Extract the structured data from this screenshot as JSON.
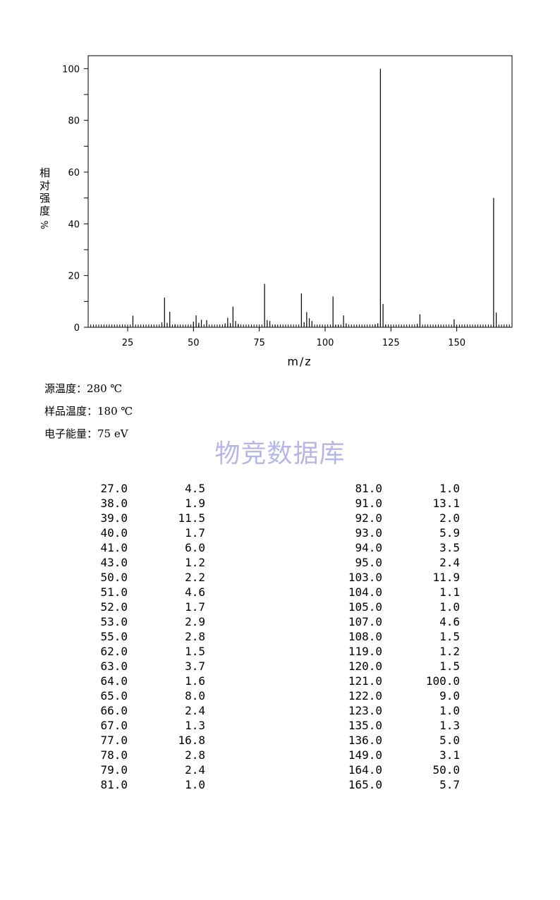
{
  "chart_data": {
    "type": "bar",
    "title": "",
    "xlabel": "m/z",
    "ylabel_chars": [
      "相",
      "对",
      "强",
      "度"
    ],
    "ylabel_unit": "%",
    "xlim": [
      10,
      171
    ],
    "ylim": [
      0,
      105
    ],
    "x_ticks": [
      25,
      50,
      75,
      100,
      125,
      150
    ],
    "y_ticks": [
      0,
      20,
      40,
      60,
      80,
      100
    ],
    "grid": false,
    "x": [
      27,
      38,
      39,
      40,
      41,
      43,
      50,
      51,
      52,
      53,
      55,
      62,
      63,
      64,
      65,
      66,
      67,
      77,
      78,
      79,
      81,
      91,
      92,
      93,
      94,
      95,
      103,
      104,
      105,
      107,
      108,
      119,
      120,
      121,
      122,
      123,
      135,
      136,
      149,
      164,
      165
    ],
    "values": [
      4.5,
      1.9,
      11.5,
      1.7,
      6.0,
      1.2,
      2.2,
      4.6,
      1.7,
      2.9,
      2.8,
      1.5,
      3.7,
      1.6,
      8.0,
      2.4,
      1.3,
      16.8,
      2.8,
      2.4,
      1.0,
      13.1,
      2.0,
      5.9,
      3.5,
      2.4,
      11.9,
      1.1,
      1.0,
      4.6,
      1.5,
      1.2,
      1.5,
      100.0,
      9.0,
      1.0,
      1.3,
      5.0,
      3.1,
      50.0,
      5.7
    ]
  },
  "conditions": {
    "source_temp": "源温度：280 ℃",
    "sample_temp": "样品温度：180 ℃",
    "electron_energy": "电子能量：75 eV"
  },
  "watermark": "物竞数据库",
  "peak_table": {
    "left": [
      {
        "mz": "27.0",
        "abundance": "4.5"
      },
      {
        "mz": "38.0",
        "abundance": "1.9"
      },
      {
        "mz": "39.0",
        "abundance": "11.5"
      },
      {
        "mz": "40.0",
        "abundance": "1.7"
      },
      {
        "mz": "41.0",
        "abundance": "6.0"
      },
      {
        "mz": "43.0",
        "abundance": "1.2"
      },
      {
        "mz": "50.0",
        "abundance": "2.2"
      },
      {
        "mz": "51.0",
        "abundance": "4.6"
      },
      {
        "mz": "52.0",
        "abundance": "1.7"
      },
      {
        "mz": "53.0",
        "abundance": "2.9"
      },
      {
        "mz": "55.0",
        "abundance": "2.8"
      },
      {
        "mz": "62.0",
        "abundance": "1.5"
      },
      {
        "mz": "63.0",
        "abundance": "3.7"
      },
      {
        "mz": "64.0",
        "abundance": "1.6"
      },
      {
        "mz": "65.0",
        "abundance": "8.0"
      },
      {
        "mz": "66.0",
        "abundance": "2.4"
      },
      {
        "mz": "67.0",
        "abundance": "1.3"
      },
      {
        "mz": "77.0",
        "abundance": "16.8"
      },
      {
        "mz": "78.0",
        "abundance": "2.8"
      },
      {
        "mz": "79.0",
        "abundance": "2.4"
      },
      {
        "mz": "81.0",
        "abundance": "1.0"
      }
    ],
    "right": [
      {
        "mz": "81.0",
        "abundance": "1.0"
      },
      {
        "mz": "91.0",
        "abundance": "13.1"
      },
      {
        "mz": "92.0",
        "abundance": "2.0"
      },
      {
        "mz": "93.0",
        "abundance": "5.9"
      },
      {
        "mz": "94.0",
        "abundance": "3.5"
      },
      {
        "mz": "95.0",
        "abundance": "2.4"
      },
      {
        "mz": "103.0",
        "abundance": "11.9"
      },
      {
        "mz": "104.0",
        "abundance": "1.1"
      },
      {
        "mz": "105.0",
        "abundance": "1.0"
      },
      {
        "mz": "107.0",
        "abundance": "4.6"
      },
      {
        "mz": "108.0",
        "abundance": "1.5"
      },
      {
        "mz": "119.0",
        "abundance": "1.2"
      },
      {
        "mz": "120.0",
        "abundance": "1.5"
      },
      {
        "mz": "121.0",
        "abundance": "100.0"
      },
      {
        "mz": "122.0",
        "abundance": "9.0"
      },
      {
        "mz": "123.0",
        "abundance": "1.0"
      },
      {
        "mz": "135.0",
        "abundance": "1.3"
      },
      {
        "mz": "136.0",
        "abundance": "5.0"
      },
      {
        "mz": "149.0",
        "abundance": "3.1"
      },
      {
        "mz": "164.0",
        "abundance": "50.0"
      },
      {
        "mz": "165.0",
        "abundance": "5.7"
      }
    ]
  }
}
